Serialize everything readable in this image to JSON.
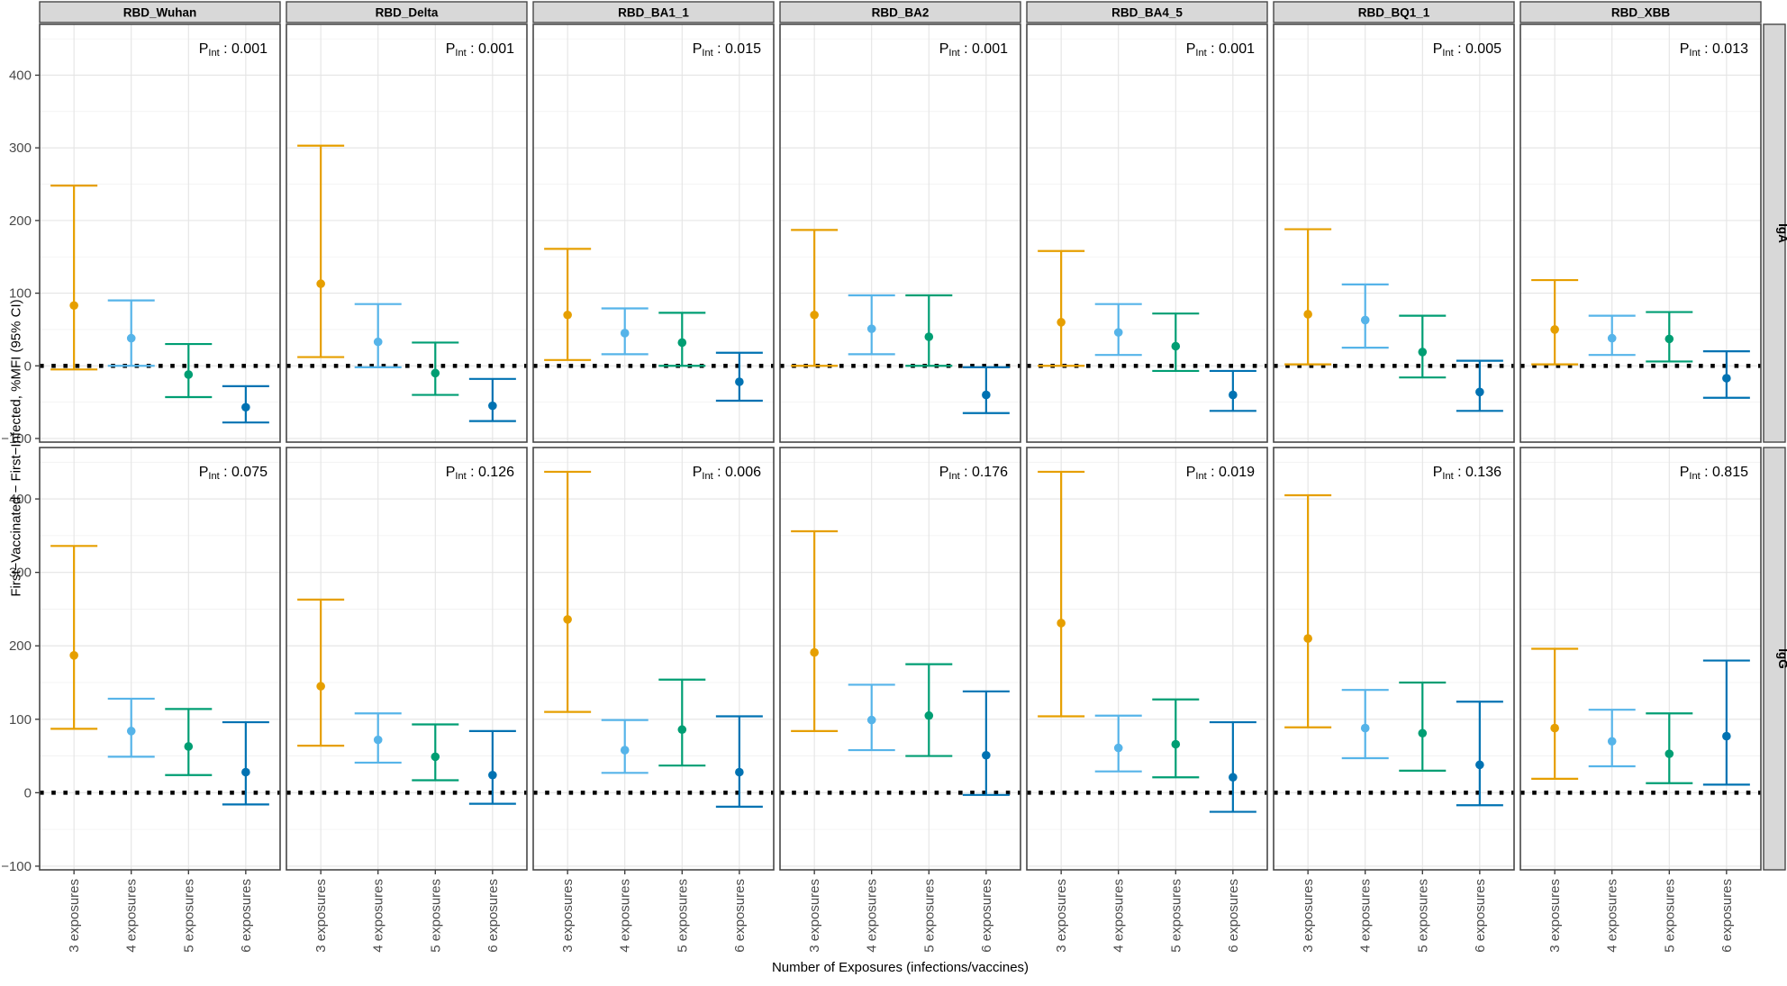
{
  "axes": {
    "y_label": "First−Vaccinated − First−Infected, %MFI (95% CI)",
    "x_label": "Number of Exposures (infections/vaccines)",
    "y_ticks": [
      400,
      300,
      200,
      100,
      0,
      -100
    ],
    "x_categories": [
      "3 exposures",
      "4 exposures",
      "5 exposures",
      "6 exposures"
    ]
  },
  "chart_data": {
    "type": "errorbar",
    "facet_columns": [
      "RBD_Wuhan",
      "RBD_Delta",
      "RBD_BA1_1",
      "RBD_BA2",
      "RBD_BA4_5",
      "RBD_BQ1_1",
      "RBD_XBB"
    ],
    "facet_rows": [
      "IgA",
      "IgG"
    ],
    "x_categories": [
      "3 exposures",
      "4 exposures",
      "5 exposures",
      "6 exposures"
    ],
    "group_colors": [
      "#E69F00",
      "#56B4E9",
      "#009E73",
      "#0072B2"
    ],
    "reference_line": 0,
    "ylim": [
      -105,
      470
    ],
    "grid": true,
    "p_label": {
      "base": "P",
      "sub": "Int",
      "sep": " : "
    },
    "panels": [
      {
        "row": "IgA",
        "column": "RBD_Wuhan",
        "p_int": "0.001",
        "points": [
          {
            "n": "3 exposures",
            "est": 83,
            "lo": -5,
            "hi": 248
          },
          {
            "n": "4 exposures",
            "est": 38,
            "lo": 0,
            "hi": 90
          },
          {
            "n": "5 exposures",
            "est": -12,
            "lo": -43,
            "hi": 30
          },
          {
            "n": "6 exposures",
            "est": -57,
            "lo": -78,
            "hi": -28
          }
        ]
      },
      {
        "row": "IgA",
        "column": "RBD_Delta",
        "p_int": "0.001",
        "points": [
          {
            "n": "3 exposures",
            "est": 113,
            "lo": 12,
            "hi": 303
          },
          {
            "n": "4 exposures",
            "est": 33,
            "lo": -2,
            "hi": 85
          },
          {
            "n": "5 exposures",
            "est": -10,
            "lo": -40,
            "hi": 32
          },
          {
            "n": "6 exposures",
            "est": -55,
            "lo": -76,
            "hi": -18
          }
        ]
      },
      {
        "row": "IgA",
        "column": "RBD_BA1_1",
        "p_int": "0.015",
        "points": [
          {
            "n": "3 exposures",
            "est": 70,
            "lo": 8,
            "hi": 161
          },
          {
            "n": "4 exposures",
            "est": 45,
            "lo": 16,
            "hi": 79
          },
          {
            "n": "5 exposures",
            "est": 32,
            "lo": 0,
            "hi": 73
          },
          {
            "n": "6 exposures",
            "est": -22,
            "lo": -48,
            "hi": 18
          }
        ]
      },
      {
        "row": "IgA",
        "column": "RBD_BA2",
        "p_int": "0.001",
        "points": [
          {
            "n": "3 exposures",
            "est": 70,
            "lo": 0,
            "hi": 187
          },
          {
            "n": "4 exposures",
            "est": 51,
            "lo": 16,
            "hi": 97
          },
          {
            "n": "5 exposures",
            "est": 40,
            "lo": 0,
            "hi": 97
          },
          {
            "n": "6 exposures",
            "est": -40,
            "lo": -65,
            "hi": -2
          }
        ]
      },
      {
        "row": "IgA",
        "column": "RBD_BA4_5",
        "p_int": "0.001",
        "points": [
          {
            "n": "3 exposures",
            "est": 60,
            "lo": 0,
            "hi": 158
          },
          {
            "n": "4 exposures",
            "est": 46,
            "lo": 15,
            "hi": 85
          },
          {
            "n": "5 exposures",
            "est": 27,
            "lo": -7,
            "hi": 72
          },
          {
            "n": "6 exposures",
            "est": -40,
            "lo": -62,
            "hi": -7
          }
        ]
      },
      {
        "row": "IgA",
        "column": "RBD_BQ1_1",
        "p_int": "0.005",
        "points": [
          {
            "n": "3 exposures",
            "est": 71,
            "lo": 2,
            "hi": 188
          },
          {
            "n": "4 exposures",
            "est": 63,
            "lo": 25,
            "hi": 112
          },
          {
            "n": "5 exposures",
            "est": 19,
            "lo": -16,
            "hi": 69
          },
          {
            "n": "6 exposures",
            "est": -36,
            "lo": -62,
            "hi": 7
          }
        ]
      },
      {
        "row": "IgA",
        "column": "RBD_XBB",
        "p_int": "0.013",
        "points": [
          {
            "n": "3 exposures",
            "est": 50,
            "lo": 2,
            "hi": 118
          },
          {
            "n": "4 exposures",
            "est": 38,
            "lo": 15,
            "hi": 69
          },
          {
            "n": "5 exposures",
            "est": 37,
            "lo": 6,
            "hi": 74
          },
          {
            "n": "6 exposures",
            "est": -17,
            "lo": -44,
            "hi": 20
          }
        ]
      },
      {
        "row": "IgG",
        "column": "RBD_Wuhan",
        "p_int": "0.075",
        "points": [
          {
            "n": "3 exposures",
            "est": 187,
            "lo": 87,
            "hi": 336
          },
          {
            "n": "4 exposures",
            "est": 84,
            "lo": 49,
            "hi": 128
          },
          {
            "n": "5 exposures",
            "est": 63,
            "lo": 24,
            "hi": 114
          },
          {
            "n": "6 exposures",
            "est": 28,
            "lo": -16,
            "hi": 96
          }
        ]
      },
      {
        "row": "IgG",
        "column": "RBD_Delta",
        "p_int": "0.126",
        "points": [
          {
            "n": "3 exposures",
            "est": 145,
            "lo": 64,
            "hi": 263
          },
          {
            "n": "4 exposures",
            "est": 72,
            "lo": 41,
            "hi": 108
          },
          {
            "n": "5 exposures",
            "est": 49,
            "lo": 17,
            "hi": 93
          },
          {
            "n": "6 exposures",
            "est": 24,
            "lo": -15,
            "hi": 84
          }
        ]
      },
      {
        "row": "IgG",
        "column": "RBD_BA1_1",
        "p_int": "0.006",
        "points": [
          {
            "n": "3 exposures",
            "est": 236,
            "lo": 110,
            "hi": 437
          },
          {
            "n": "4 exposures",
            "est": 58,
            "lo": 27,
            "hi": 99
          },
          {
            "n": "5 exposures",
            "est": 86,
            "lo": 37,
            "hi": 154
          },
          {
            "n": "6 exposures",
            "est": 28,
            "lo": -19,
            "hi": 104
          }
        ]
      },
      {
        "row": "IgG",
        "column": "RBD_BA2",
        "p_int": "0.176",
        "points": [
          {
            "n": "3 exposures",
            "est": 191,
            "lo": 84,
            "hi": 356
          },
          {
            "n": "4 exposures",
            "est": 99,
            "lo": 58,
            "hi": 147
          },
          {
            "n": "5 exposures",
            "est": 105,
            "lo": 50,
            "hi": 175
          },
          {
            "n": "6 exposures",
            "est": 51,
            "lo": -3,
            "hi": 138
          }
        ]
      },
      {
        "row": "IgG",
        "column": "RBD_BA4_5",
        "p_int": "0.019",
        "points": [
          {
            "n": "3 exposures",
            "est": 231,
            "lo": 104,
            "hi": 437
          },
          {
            "n": "4 exposures",
            "est": 61,
            "lo": 29,
            "hi": 105
          },
          {
            "n": "5 exposures",
            "est": 66,
            "lo": 21,
            "hi": 127
          },
          {
            "n": "6 exposures",
            "est": 21,
            "lo": -26,
            "hi": 96
          }
        ]
      },
      {
        "row": "IgG",
        "column": "RBD_BQ1_1",
        "p_int": "0.136",
        "points": [
          {
            "n": "3 exposures",
            "est": 210,
            "lo": 89,
            "hi": 405
          },
          {
            "n": "4 exposures",
            "est": 88,
            "lo": 47,
            "hi": 140
          },
          {
            "n": "5 exposures",
            "est": 81,
            "lo": 30,
            "hi": 150
          },
          {
            "n": "6 exposures",
            "est": 38,
            "lo": -17,
            "hi": 124
          }
        ]
      },
      {
        "row": "IgG",
        "column": "RBD_XBB",
        "p_int": "0.815",
        "points": [
          {
            "n": "3 exposures",
            "est": 88,
            "lo": 19,
            "hi": 196
          },
          {
            "n": "4 exposures",
            "est": 70,
            "lo": 36,
            "hi": 113
          },
          {
            "n": "5 exposures",
            "est": 53,
            "lo": 13,
            "hi": 108
          },
          {
            "n": "6 exposures",
            "est": 77,
            "lo": 11,
            "hi": 180
          }
        ]
      }
    ]
  }
}
